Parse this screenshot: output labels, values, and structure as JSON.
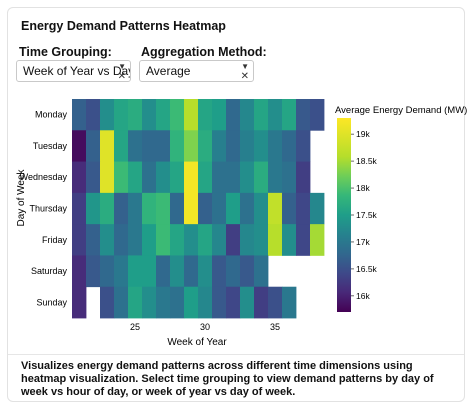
{
  "title": "Energy Demand Patterns Heatmap",
  "controls": {
    "time_grouping": {
      "label": "Time Grouping:",
      "value": "Week of Year vs Day ..."
    },
    "aggregation": {
      "label": "Aggregation Method:",
      "value": "Average"
    }
  },
  "description": "Visualizes energy demand patterns across different time dimensions using heatmap visualization. Select time grouping to view demand patterns by day of week vs hour of day, or week of year vs day of week.",
  "chart_data": {
    "type": "heatmap",
    "xlabel": "Week of Year",
    "ylabel": "Day of Week",
    "colorbar_title": "Average Energy Demand (MW)",
    "x_first": 21,
    "x_ticks": [
      25,
      30,
      35
    ],
    "x": [
      21,
      22,
      23,
      24,
      25,
      26,
      27,
      28,
      29,
      30,
      31,
      32,
      33,
      34,
      35,
      36,
      37,
      38
    ],
    "y": [
      "Monday",
      "Tuesday",
      "Wednesday",
      "Thursday",
      "Friday",
      "Saturday",
      "Sunday"
    ],
    "colorbar_ticks": [
      "16k",
      "16.5k",
      "17k",
      "17.5k",
      "18k",
      "18.5k",
      "19k"
    ],
    "colorbar_tick_values": [
      16000,
      16500,
      17000,
      17500,
      18000,
      18500,
      19000
    ],
    "zmin": 15700,
    "zmax": 19300,
    "z": [
      [
        16700,
        16500,
        17300,
        17600,
        17700,
        17300,
        17600,
        17900,
        18600,
        17600,
        17500,
        16800,
        17200,
        17600,
        17300,
        17600,
        16600,
        16500
      ],
      [
        15800,
        16700,
        19000,
        17600,
        16900,
        16800,
        16800,
        17800,
        18300,
        17700,
        17100,
        16800,
        17100,
        17300,
        17000,
        16800,
        16500,
        null
      ],
      [
        16100,
        16600,
        19000,
        17900,
        17600,
        16900,
        17300,
        17600,
        19200,
        17600,
        16900,
        16900,
        17300,
        17700,
        17000,
        16900,
        16300,
        null
      ],
      [
        16300,
        17400,
        17700,
        16700,
        17000,
        17800,
        17900,
        16800,
        19200,
        16700,
        16900,
        17500,
        16900,
        17300,
        18700,
        16700,
        16400,
        17200
      ],
      [
        16300,
        16700,
        17300,
        16800,
        17000,
        17500,
        17900,
        17600,
        17300,
        17600,
        17200,
        16300,
        17200,
        17300,
        18600,
        17300,
        16400,
        18500
      ],
      [
        16100,
        16600,
        16800,
        17000,
        17500,
        17500,
        16800,
        17300,
        16800,
        17300,
        16600,
        16800,
        16600,
        16900,
        null,
        null,
        null,
        null
      ],
      [
        16100,
        null,
        16500,
        16900,
        17600,
        17300,
        17000,
        16900,
        17500,
        17200,
        16600,
        16400,
        17300,
        16300,
        16500,
        17000,
        null,
        null
      ]
    ]
  }
}
